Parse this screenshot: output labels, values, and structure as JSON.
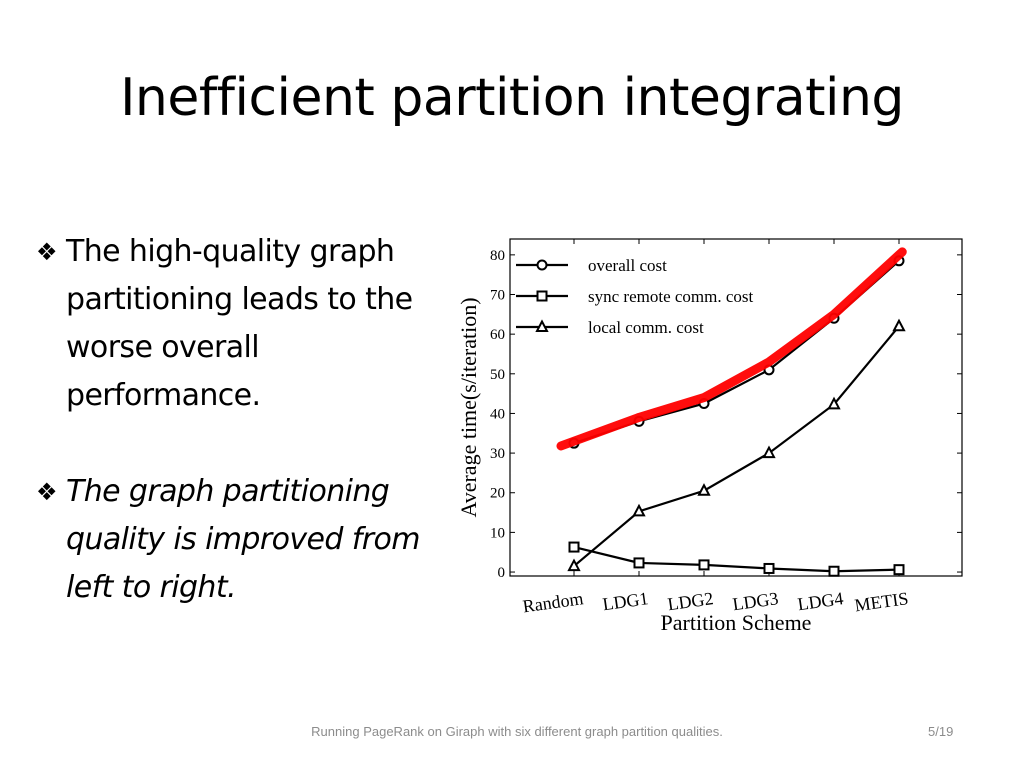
{
  "slide": {
    "title": "Inefficient partition integrating",
    "bullets": [
      {
        "glyph": "❖",
        "text": "The high-quality graph partitioning leads to the worse overall performance.",
        "italic": false
      },
      {
        "glyph": "❖",
        "text": "The graph partitioning quality is improved from left to right.",
        "italic": true
      }
    ],
    "footer": "Running PageRank on Giraph with six different graph partition qualities.",
    "page_number": "5/19"
  },
  "colors": {
    "highlight": "#ff0000",
    "series": "#000000",
    "text": "#000000",
    "footer": "#8c8c8c"
  },
  "chart_data": {
    "type": "line",
    "title": "",
    "xlabel": "Partition Scheme",
    "ylabel": "Average time(s/iteration)",
    "categories": [
      "Random",
      "LDG1",
      "LDG2",
      "LDG3",
      "LDG4",
      "METIS"
    ],
    "ylim": [
      -1,
      84
    ],
    "yticks": [
      0,
      10,
      20,
      30,
      40,
      50,
      60,
      70,
      80
    ],
    "legend_position": "top-left",
    "grid": false,
    "series": [
      {
        "name": "overall cost",
        "marker": "circle",
        "values": [
          32.5,
          38,
          42.5,
          51,
          64,
          78.5
        ]
      },
      {
        "name": "sync remote comm. cost",
        "marker": "square",
        "values": [
          6.3,
          2.3,
          1.8,
          0.9,
          0.2,
          0.6
        ]
      },
      {
        "name": "local comm. cost",
        "marker": "triangle",
        "values": [
          1.5,
          15.3,
          20.5,
          30,
          42.3,
          62
        ]
      }
    ],
    "highlight_line": {
      "values": [
        33,
        39,
        44,
        53,
        65,
        80
      ]
    }
  }
}
